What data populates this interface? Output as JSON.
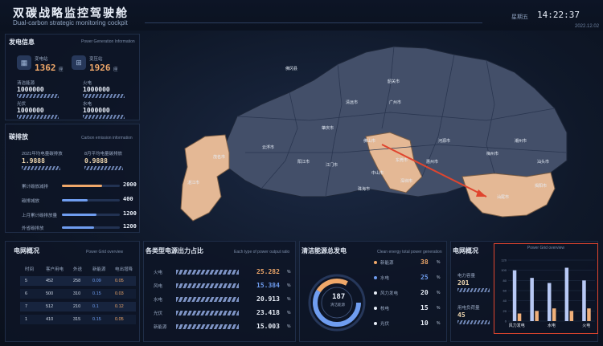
{
  "header": {
    "title": "双碳战略监控驾驶舱",
    "subtitle": "Dual-carbon strategic monitoring cockpit",
    "weekday": "星期五",
    "time": "14:22:37",
    "date": "2022.12.02"
  },
  "generation": {
    "title": "发电信息",
    "subtitle": "Power Generation Information",
    "stations": [
      {
        "label": "变电站",
        "value": "1362",
        "unit": "座"
      },
      {
        "label": "变压站",
        "value": "1926",
        "unit": "座"
      }
    ],
    "metrics": [
      {
        "label": "清洁能源",
        "value": "1000000"
      },
      {
        "label": "火电",
        "value": "1000000"
      },
      {
        "label": "光伏",
        "value": "1000000"
      },
      {
        "label": "水电",
        "value": "1000000"
      }
    ]
  },
  "carbon": {
    "title": "碳排放",
    "subtitle": "Carbon emission information",
    "stats": [
      {
        "label": "2021年均电量碳排放",
        "value": "1.9888"
      },
      {
        "label": "8月平均电量碳排放",
        "value": "0.9888"
      }
    ],
    "bars": [
      {
        "label": "累计碳放减排",
        "value": "2000",
        "fill": 0.7,
        "color": "#f0a86a"
      },
      {
        "label": "碳排减放",
        "value": "400",
        "fill": 0.45,
        "color": "#6f9df0"
      },
      {
        "label": "上月累计碳排放量",
        "value": "1200",
        "fill": 0.6,
        "color": "#6f9df0"
      },
      {
        "label": "外省碳排放",
        "value": "1200",
        "fill": 0.55,
        "color": "#6f9df0"
      }
    ]
  },
  "grid_left": {
    "title": "电网概况",
    "subtitle": "Power Grid overview",
    "headers": [
      "时间",
      "客户用电",
      "外送",
      "新能源",
      "电出增降"
    ],
    "rows": [
      [
        "5",
        "452",
        "258",
        "0.09",
        "0.05"
      ],
      [
        "6",
        "500",
        "310",
        "0.15",
        "0.03"
      ],
      [
        "7",
        "512",
        "210",
        "0.1",
        "0.12"
      ],
      [
        "1",
        "410",
        "315",
        "0.15",
        "0.05"
      ]
    ]
  },
  "output": {
    "title": "各类型电源出力占比",
    "subtitle": "Each type of power output ratio",
    "items": [
      {
        "label": "火电",
        "pct": "25.282",
        "color": "#f0a86a"
      },
      {
        "label": "风电",
        "pct": "15.384",
        "color": "#6f9df0"
      },
      {
        "label": "水电",
        "pct": "20.913",
        "color": "#e8eef8"
      },
      {
        "label": "光伏",
        "pct": "23.418",
        "color": "#e8eef8"
      },
      {
        "label": "新能源",
        "pct": "15.003",
        "color": "#e8eef8"
      }
    ],
    "unit": "%"
  },
  "clean": {
    "title": "清洁能源总发电",
    "subtitle": "Clean energy total power generation",
    "center_value": "187",
    "center_label": "清洁能源",
    "items": [
      {
        "label": "新能源",
        "pct": "38",
        "color": "#f0a86a"
      },
      {
        "label": "水电",
        "pct": "25",
        "color": "#6f9df0"
      },
      {
        "label": "风力发电",
        "pct": "20",
        "color": "#e8eef8"
      },
      {
        "label": "核电",
        "pct": "15",
        "color": "#e8eef8"
      },
      {
        "label": "光伏",
        "pct": "10",
        "color": "#e8eef8"
      }
    ],
    "unit": "%"
  },
  "grid_right": {
    "title": "电网概况",
    "chart_subtitle": "Power Grid overview",
    "stats": [
      {
        "label": "电力容量",
        "value": "201"
      },
      {
        "label": "用电负荷量",
        "value": "45"
      }
    ]
  },
  "map": {
    "cities": [
      "佛冈县",
      "清远市",
      "广州市",
      "韶关市",
      "河源市",
      "梅州市",
      "惠州市",
      "汕尾市",
      "东莞市",
      "深圳市",
      "中山市",
      "珠海市",
      "江门市",
      "佛山市",
      "肇庆市",
      "云浮市",
      "阳江市",
      "茂名市",
      "湛江市",
      "汕头市",
      "潮州市",
      "揭阳市"
    ]
  },
  "chart_data": {
    "type": "bar",
    "title": "Power Grid overview",
    "categories": [
      "风力发电",
      "",
      "水电",
      "",
      "火电"
    ],
    "series": [
      {
        "name": "",
        "values": [
          100,
          85,
          75,
          105,
          80
        ]
      },
      {
        "name": "",
        "values": [
          15,
          20,
          25,
          20,
          25
        ]
      }
    ],
    "ylim": [
      0,
      120
    ],
    "yticks": [
      0,
      20,
      40,
      60,
      80,
      100,
      120
    ],
    "colors": [
      "#b8c9f5",
      "#f0b07a"
    ]
  }
}
